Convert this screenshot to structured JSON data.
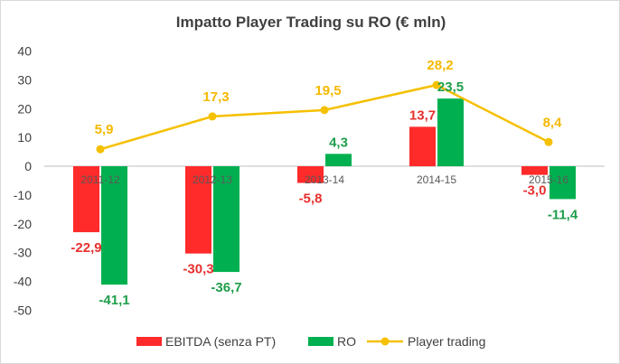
{
  "chart_data": {
    "type": "bar",
    "title": "Impatto Player Trading su RO (€ mln)",
    "categories": [
      "2011-12",
      "2012-13",
      "2013-14",
      "2014-15",
      "2015-16"
    ],
    "series": [
      {
        "name": "EBITDA (senza PT)",
        "type": "bar",
        "color": "#ff2a2a",
        "label_color": "#e8302d",
        "values": [
          -22.9,
          -30.3,
          -5.8,
          13.7,
          -3.0
        ],
        "labels": [
          "-22,9",
          "-30,3",
          "-5,8",
          "13,7",
          "-3,0"
        ]
      },
      {
        "name": "RO",
        "type": "bar",
        "color": "#00b050",
        "label_color": "#1e9e4a",
        "values": [
          -41.1,
          -36.7,
          4.3,
          23.5,
          -11.4
        ],
        "labels": [
          "-41,1",
          "-36,7",
          "4,3",
          "23,5",
          "-11,4"
        ]
      },
      {
        "name": "Player trading",
        "type": "line",
        "color": "#f5c000",
        "label_color": "#f5b800",
        "values": [
          5.9,
          17.3,
          19.5,
          28.2,
          8.4
        ],
        "labels": [
          "5,9",
          "17,3",
          "19,5",
          "28,2",
          "8,4"
        ]
      }
    ],
    "ylim": [
      -50,
      40
    ],
    "yticks": [
      "-50",
      "-40",
      "-30",
      "-20",
      "-10",
      "0",
      "10",
      "20",
      "30",
      "40"
    ],
    "ytick_values": [
      -50,
      -40,
      -30,
      -20,
      -10,
      0,
      10,
      20,
      30,
      40
    ],
    "xlabel": "",
    "ylabel": "",
    "grid": false,
    "legend_position": "bottom"
  }
}
